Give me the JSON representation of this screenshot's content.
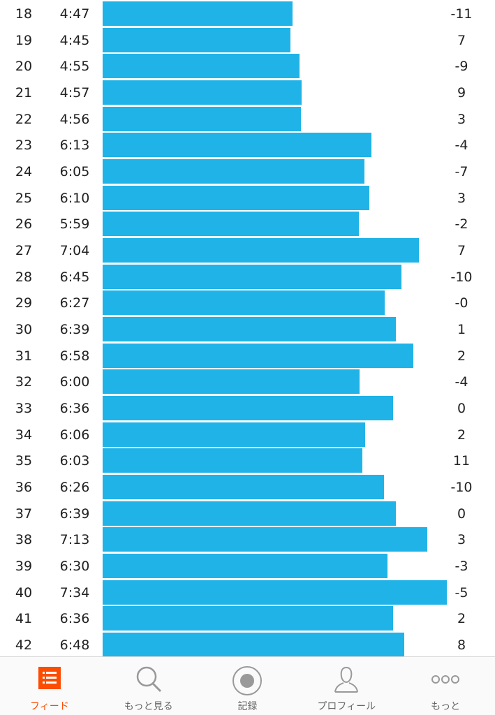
{
  "splits": {
    "rows": [
      {
        "km": 18,
        "pace": {
          "value": 287,
          "label": "4:47"
        },
        "elevation": "-11"
      },
      {
        "km": 19,
        "pace": {
          "value": 285,
          "label": "4:45"
        },
        "elevation": "7"
      },
      {
        "km": 20,
        "pace": {
          "value": 295,
          "label": "4:55"
        },
        "elevation": "-9"
      },
      {
        "km": 21,
        "pace": {
          "value": 297,
          "label": "4:57"
        },
        "elevation": "9"
      },
      {
        "km": 22,
        "pace": {
          "value": 296,
          "label": "4:56"
        },
        "elevation": "3"
      },
      {
        "km": 23,
        "pace": {
          "value": 373,
          "label": "6:13"
        },
        "elevation": "-4"
      },
      {
        "km": 24,
        "pace": {
          "value": 365,
          "label": "6:05"
        },
        "elevation": "-7"
      },
      {
        "km": 25,
        "pace": {
          "value": 370,
          "label": "6:10"
        },
        "elevation": "3"
      },
      {
        "km": 26,
        "pace": {
          "value": 359,
          "label": "5:59"
        },
        "elevation": "-2"
      },
      {
        "km": 27,
        "pace": {
          "value": 424,
          "label": "7:04"
        },
        "elevation": "7"
      },
      {
        "km": 28,
        "pace": {
          "value": 405,
          "label": "6:45"
        },
        "elevation": "-10"
      },
      {
        "km": 29,
        "pace": {
          "value": 387,
          "label": "6:27"
        },
        "elevation": "-0"
      },
      {
        "km": 30,
        "pace": {
          "value": 399,
          "label": "6:39"
        },
        "elevation": "1"
      },
      {
        "km": 31,
        "pace": {
          "value": 418,
          "label": "6:58"
        },
        "elevation": "2"
      },
      {
        "km": 32,
        "pace": {
          "value": 360,
          "label": "6:00"
        },
        "elevation": "-4"
      },
      {
        "km": 33,
        "pace": {
          "value": 396,
          "label": "6:36"
        },
        "elevation": "0"
      },
      {
        "km": 34,
        "pace": {
          "value": 366,
          "label": "6:06"
        },
        "elevation": "2"
      },
      {
        "km": 35,
        "pace": {
          "value": 363,
          "label": "6:03"
        },
        "elevation": "11"
      },
      {
        "km": 36,
        "pace": {
          "value": 386,
          "label": "6:26"
        },
        "elevation": "-10"
      },
      {
        "km": 37,
        "pace": {
          "value": 399,
          "label": "6:39"
        },
        "elevation": "0"
      },
      {
        "km": 38,
        "pace": {
          "value": 433,
          "label": "7:13"
        },
        "elevation": "3"
      },
      {
        "km": 39,
        "pace": {
          "value": 390,
          "label": "6:30"
        },
        "elevation": "-3"
      },
      {
        "km": 40,
        "pace": {
          "value": 454,
          "label": "7:34"
        },
        "elevation": "-5"
      },
      {
        "km": 41,
        "pace": {
          "value": 396,
          "label": "6:36"
        },
        "elevation": "2"
      },
      {
        "km": 42,
        "pace": {
          "value": 408,
          "label": "6:48"
        },
        "elevation": "8"
      }
    ]
  },
  "tab_bar": {
    "tabs": [
      "フィード",
      "もっと見る",
      "記録",
      "プロフィール",
      "もっと"
    ]
  }
}
